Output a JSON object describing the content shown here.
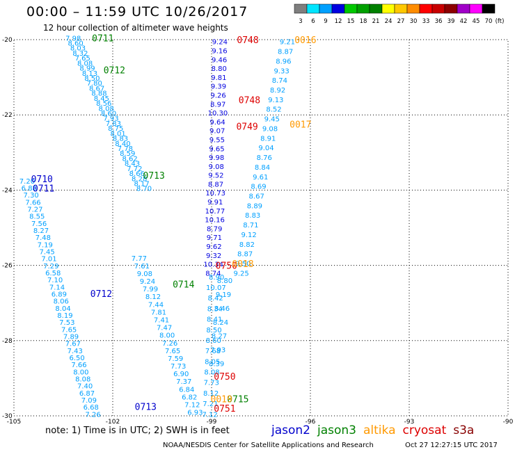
{
  "header": {
    "title": "00:00 – 11:59 UTC 10/26/2017",
    "subtitle": "12 hour collection of altimeter wave heights"
  },
  "colorbar": {
    "labels": [
      "3",
      "6",
      "9",
      "12",
      "15",
      "18",
      "21",
      "24",
      "27",
      "30",
      "33",
      "36",
      "39",
      "42",
      "45",
      "70",
      "(ft)"
    ],
    "colors": [
      "#7f7f7f",
      "#00e5ff",
      "#00a0ff",
      "#0000e0",
      "#00c800",
      "#00a000",
      "#008000",
      "#ffff00",
      "#ffc800",
      "#ff8c00",
      "#ff0000",
      "#c80000",
      "#8c0000",
      "#a000c8",
      "#ff00ff",
      "#000000"
    ]
  },
  "axes": {
    "lon_ticks": [
      "-105",
      "-102",
      "-99",
      "-96",
      "-93",
      "-90"
    ],
    "lat_ticks": [
      "-20",
      "-22",
      "-24",
      "-26",
      "-28",
      "-30"
    ]
  },
  "footer": {
    "note": "note:  1) Time is in UTC;  2) SWH is in feet",
    "credit": "NOAA/NESDIS Center for Satellite Applications and Research",
    "stamp": "Oct 27 12:27:15 UTC 2017"
  },
  "satellites": [
    {
      "name": "jason2",
      "color": "#0000cc"
    },
    {
      "name": "jason3",
      "color": "#008000"
    },
    {
      "name": "altika",
      "color": "#ff9900"
    },
    {
      "name": "cryosat",
      "color": "#dd0000"
    },
    {
      "name": "s3a",
      "color": "#880000"
    }
  ],
  "tracks": [
    {
      "sat": "jason3",
      "color": "#00a0ff",
      "lon0": -103.2,
      "lat0": -19.95,
      "lon1": -101.05,
      "lat1": -23.95,
      "values": [
        "7.98",
        "8.60",
        "8.03",
        "8.32",
        "7.65",
        "8.08",
        "8.99",
        "8.13",
        "8.50",
        "7.80",
        "8.67",
        "8.88",
        "8.45",
        "8.56",
        "8.08",
        "8.60",
        "7.93",
        "7.83",
        "8.75",
        "8.01",
        "8.83",
        "8.40",
        "7.78",
        "8.59",
        "8.62",
        "8.43",
        "7.72",
        "8.66",
        "8.28",
        "8.17",
        "8.70"
      ]
    },
    {
      "sat": "jason3",
      "color": "#00a0ff",
      "lon0": -101.2,
      "lat0": -25.8,
      "lon1": -99.5,
      "lat1": -29.9,
      "values": [
        "7.77",
        "7.61",
        "9.08",
        "9.24",
        "7.99",
        "8.12",
        "7.44",
        "7.81",
        "7.41",
        "7.47",
        "8.00",
        "7.26",
        "7.65",
        "7.59",
        "7.73",
        "6.90",
        "7.37",
        "6.84",
        "6.82",
        "7.12",
        "6.93"
      ]
    },
    {
      "sat": "jason2",
      "color": "#00a0ff",
      "lon0": -104.6,
      "lat0": -23.75,
      "lon1": -102.6,
      "lat1": -29.95,
      "values": [
        "7.20",
        "6.88",
        "7.30",
        "7.66",
        "7.27",
        "8.55",
        "7.56",
        "8.27",
        "7.48",
        "7.19",
        "7.45",
        "7.01",
        "7.29",
        "6.58",
        "7.10",
        "7.14",
        "6.89",
        "8.06",
        "8.04",
        "8.19",
        "7.53",
        "7.65",
        "7.89",
        "7.67",
        "7.43",
        "6.50",
        "7.66",
        "8.00",
        "8.08",
        "7.40",
        "6.87",
        "7.09",
        "6.68",
        "7.26"
      ]
    },
    {
      "sat": "altika",
      "color": "#0000e0",
      "lon0": -98.75,
      "lat0": -20.05,
      "lon1": -98.95,
      "lat1": -26.2,
      "values": [
        "9.24",
        "9.16",
        "9.46",
        "8.80",
        "9.81",
        "9.39",
        "9.26",
        "8.97",
        "10.30",
        "9.64",
        "9.07",
        "9.55",
        "9.65",
        "9.98",
        "9.08",
        "9.52",
        "8.87",
        "10.73",
        "9.91",
        "10.77",
        "10.16",
        "8.79",
        "9.71",
        "9.62",
        "9.32",
        "10.34",
        "8.74"
      ]
    },
    {
      "sat": "altika",
      "color": "#00a0ff",
      "lon0": -96.7,
      "lat0": -20.05,
      "lon1": -98.1,
      "lat1": -26.2,
      "values": [
        "9.21",
        "8.87",
        "8.96",
        "9.33",
        "8.74",
        "8.92",
        "9.13",
        "8.52",
        "9.45",
        "9.08",
        "8.91",
        "9.04",
        "8.76",
        "8.84",
        "9.61",
        "8.69",
        "8.67",
        "8.89",
        "8.83",
        "8.71",
        "9.12",
        "8.82",
        "8.87",
        "9.50",
        "9.25"
      ]
    },
    {
      "sat": "altika",
      "color": "#00a0ff",
      "lon0": -98.85,
      "lat0": -26.3,
      "lon1": -99.05,
      "lat1": -29.95,
      "values": [
        "8.90",
        "10.07",
        "8.42",
        "8.34",
        "8.41",
        "8.50",
        "8.60",
        "7.68",
        "8.05",
        "8.08",
        "7.73",
        "8.12",
        "7.21",
        "7.12"
      ]
    },
    {
      "sat": "altika",
      "color": "#00a0ff",
      "lon0": -98.6,
      "lat0": -26.4,
      "lon1": -98.85,
      "lat1": -28.6,
      "values": [
        "8.80",
        "9.19",
        "8.46",
        "8.24",
        "8.27",
        "7.93",
        "8.39"
      ]
    }
  ],
  "markers": [
    {
      "label": "0711",
      "color": "#008000",
      "lon": -102.3,
      "lat": -19.95
    },
    {
      "label": "0712",
      "color": "#008000",
      "lon": -101.95,
      "lat": -20.8
    },
    {
      "label": "0713",
      "color": "#008000",
      "lon": -100.75,
      "lat": -23.6
    },
    {
      "label": "0714",
      "color": "#008000",
      "lon": -99.85,
      "lat": -26.5
    },
    {
      "label": "0715",
      "color": "#008000",
      "lon": -98.2,
      "lat": -29.55
    },
    {
      "label": "0710",
      "color": "#0000cc",
      "lon": -104.15,
      "lat": -23.7
    },
    {
      "label": "0711",
      "color": "#0000cc",
      "lon": -104.1,
      "lat": -23.95
    },
    {
      "label": "0712",
      "color": "#0000cc",
      "lon": -102.35,
      "lat": -26.75
    },
    {
      "label": "0713",
      "color": "#0000cc",
      "lon": -101.0,
      "lat": -29.75
    },
    {
      "label": "0748",
      "color": "#dd0000",
      "lon": -97.9,
      "lat": -20.0
    },
    {
      "label": "0748",
      "color": "#dd0000",
      "lon": -97.85,
      "lat": -21.6
    },
    {
      "label": "0749",
      "color": "#dd0000",
      "lon": -97.92,
      "lat": -22.3
    },
    {
      "label": "0750",
      "color": "#dd0000",
      "lon": -98.55,
      "lat": -26.0
    },
    {
      "label": "0750",
      "color": "#dd0000",
      "lon": -98.6,
      "lat": -28.95
    },
    {
      "label": "0751",
      "color": "#dd0000",
      "lon": -98.6,
      "lat": -29.8
    },
    {
      "label": "0016",
      "color": "#ff9900",
      "lon": -96.15,
      "lat": -20.0
    },
    {
      "label": "0017",
      "color": "#ff9900",
      "lon": -96.3,
      "lat": -22.25
    },
    {
      "label": "0018",
      "color": "#ff9900",
      "lon": -98.05,
      "lat": -25.95
    },
    {
      "label": "0019",
      "color": "#ff9900",
      "lon": -98.7,
      "lat": -29.55
    }
  ]
}
